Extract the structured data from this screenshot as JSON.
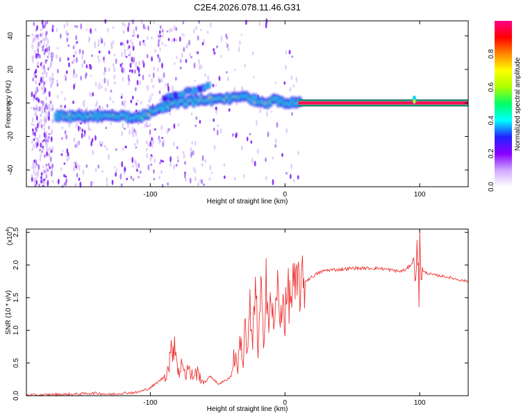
{
  "title": "C2E4.2026.078.11.46.G31",
  "colors": {
    "line": "#ee3333",
    "frame": "#000000",
    "background": "#ffffff"
  },
  "chart_data": [
    {
      "type": "heatmap",
      "xlabel": "Height of straight line (km)",
      "ylabel": "Frequency (Hz)",
      "xlim": [
        -192,
        136
      ],
      "ylim": [
        -50,
        49
      ],
      "xticks": [
        -100,
        0,
        100
      ],
      "xtick_labels": [
        "-100",
        "0",
        "100"
      ],
      "yticks": [
        -40,
        -20,
        0,
        20,
        40
      ],
      "ytick_labels": [
        "-40",
        "-20",
        "0",
        "20",
        "40"
      ],
      "colorbar": {
        "label": "Normalized spectral amplitude",
        "range": [
          0,
          1
        ],
        "ticks": [
          0.0,
          0.2,
          0.4,
          0.6,
          0.8
        ],
        "tick_labels": [
          "0.0",
          "0.2",
          "0.4",
          "0.6",
          "0.8"
        ],
        "stops": [
          "#ffffff",
          "#cfa8ff",
          "#8800ff",
          "#2222ff",
          "#00ffff",
          "#00ff66",
          "#aaff00",
          "#ffff00",
          "#ff8800",
          "#ff0000",
          "#ff0088"
        ]
      },
      "ridge": {
        "x": [
          -170,
          -160,
          -150,
          -140,
          -130,
          -120,
          -110,
          -100,
          -95,
          -90,
          -80,
          -70,
          -60,
          -50,
          -40,
          -30,
          -20,
          -15,
          -10,
          -5,
          0,
          5,
          10,
          20,
          60,
          95,
          97,
          100,
          135
        ],
        "y": [
          -8,
          -8,
          -8,
          -8,
          -8,
          -8,
          -9,
          -6,
          -3,
          -2,
          0,
          1,
          2,
          2,
          3,
          4,
          1,
          -1,
          2,
          1,
          0,
          0,
          0,
          0,
          0,
          0,
          3,
          0,
          0
        ]
      },
      "secondary_ridge": {
        "x": [
          -90,
          -80,
          -70,
          -60,
          -55
        ],
        "y": [
          3,
          5,
          7,
          9,
          12
        ]
      }
    },
    {
      "type": "line",
      "xlabel": "Height of straight line (km)",
      "ylabel": "SNR (10 * v/v)",
      "scale_label": "(x10",
      "scale_exponent": "4",
      "xlim": [
        -192,
        136
      ],
      "ylim": [
        0,
        2.55
      ],
      "xticks": [
        -100,
        0,
        100
      ],
      "xtick_labels": [
        "-100",
        "0",
        "100"
      ],
      "yticks": [
        0.0,
        0.5,
        1.0,
        1.5,
        2.0,
        2.5
      ],
      "ytick_labels": [
        "0.0",
        "0.5",
        "1.0",
        "1.5",
        "2.0",
        "2.5"
      ],
      "series": [
        {
          "name": "SNR",
          "x": [
            -192,
            -180,
            -170,
            -160,
            -150,
            -140,
            -130,
            -120,
            -110,
            -105,
            -100,
            -95,
            -90,
            -87,
            -85,
            -82,
            -80,
            -78,
            -76,
            -74,
            -72,
            -70,
            -65,
            -60,
            -55,
            -50,
            -45,
            -40,
            -38,
            -35,
            -33,
            -31,
            -30,
            -28,
            -26,
            -24,
            -22,
            -20,
            -18,
            -16,
            -14,
            -12,
            -10,
            -8,
            -6,
            -4,
            -2,
            0,
            2,
            4,
            6,
            8,
            10,
            12,
            15,
            20,
            25,
            30,
            40,
            50,
            60,
            70,
            80,
            85,
            90,
            95,
            97,
            98,
            99,
            99.5,
            100,
            101,
            102,
            105,
            110,
            120,
            130,
            136
          ],
          "y": [
            0.01,
            0.01,
            0.02,
            0.02,
            0.03,
            0.04,
            0.02,
            0.04,
            0.05,
            0.08,
            0.12,
            0.2,
            0.28,
            0.4,
            0.6,
            0.85,
            0.5,
            0.3,
            0.6,
            0.3,
            0.45,
            0.3,
            0.35,
            0.2,
            0.3,
            0.18,
            0.22,
            0.3,
            0.6,
            0.45,
            0.9,
            0.45,
            1.1,
            0.6,
            1.3,
            0.7,
            1.95,
            0.55,
            1.6,
            0.8,
            1.95,
            1.0,
            1.55,
            0.9,
            1.8,
            1.05,
            1.55,
            1.2,
            1.6,
            1.45,
            1.7,
            1.55,
            1.75,
            1.65,
            1.75,
            1.82,
            1.88,
            1.92,
            1.93,
            1.95,
            1.95,
            1.95,
            1.92,
            1.9,
            1.93,
            2.05,
            1.85,
            2.25,
            1.95,
            1.25,
            2.55,
            1.85,
            1.9,
            1.88,
            1.85,
            1.82,
            1.77,
            1.75
          ]
        }
      ]
    }
  ]
}
